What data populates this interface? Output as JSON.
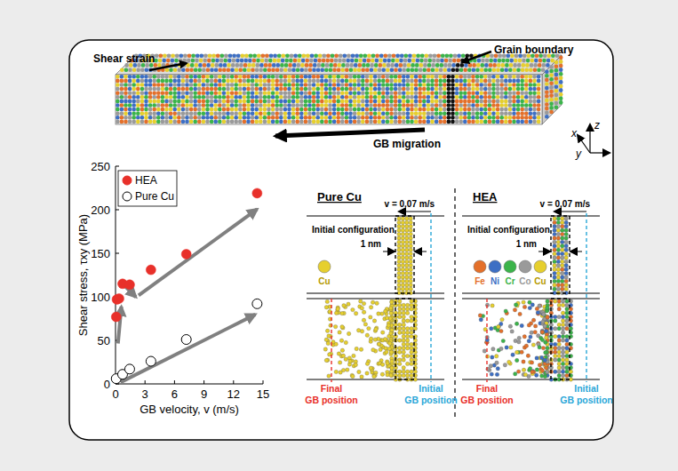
{
  "chart_data": {
    "type": "scatter",
    "xlabel": "GB velocity, v (m/s)",
    "ylabel": "Shear stress, τxy (MPa)",
    "xlim": [
      0,
      15
    ],
    "ylim": [
      0,
      250
    ],
    "xticks": [
      0,
      3,
      6,
      9,
      12,
      15
    ],
    "yticks": [
      0,
      50,
      100,
      150,
      200,
      250
    ],
    "grid": false,
    "legend": "upper left",
    "series": [
      {
        "name": "HEA",
        "color": "#e8302a",
        "marker": "filled-circle",
        "x": [
          0.07,
          0.14,
          0.36,
          0.72,
          1.44,
          3.6,
          7.2,
          14.4
        ],
        "values": [
          77,
          97,
          98,
          115,
          114,
          131,
          149,
          219
        ]
      },
      {
        "name": "Pure Cu",
        "color": "#000000",
        "marker": "open-circle",
        "x": [
          0.07,
          0.72,
          1.44,
          3.6,
          7.2,
          14.4
        ],
        "values": [
          6,
          11,
          17,
          26,
          51,
          92
        ]
      }
    ]
  },
  "diagram": {
    "simulation_box": {
      "shear_strain": "Shear strain",
      "grain_boundary": "Grain boundary",
      "gb_migration": "GB migration",
      "axes": [
        "x",
        "y",
        "z"
      ]
    },
    "panels": [
      {
        "title": "Pure Cu",
        "initial_configuration": "Initial configuration",
        "velocity": "v = 0.07 m/s",
        "width": "1 nm",
        "elements": [
          {
            "name": "Cu",
            "color": "#e6cf2e"
          }
        ],
        "final_gb": "Final GB position",
        "initial_gb": "Initial GB position"
      },
      {
        "title": "HEA",
        "initial_configuration": "Initial configuration",
        "velocity": "v = 0.07 m/s",
        "width": "1 nm",
        "elements": [
          {
            "name": "Fe",
            "color": "#e4702a"
          },
          {
            "name": "Ni",
            "color": "#3d6fc4"
          },
          {
            "name": "Cr",
            "color": "#3bb44a"
          },
          {
            "name": "Co",
            "color": "#9a9a9a"
          },
          {
            "name": "Cu",
            "color": "#e6cf2e"
          }
        ],
        "final_gb": "Final GB position",
        "initial_gb": "Initial GB position"
      }
    ]
  }
}
